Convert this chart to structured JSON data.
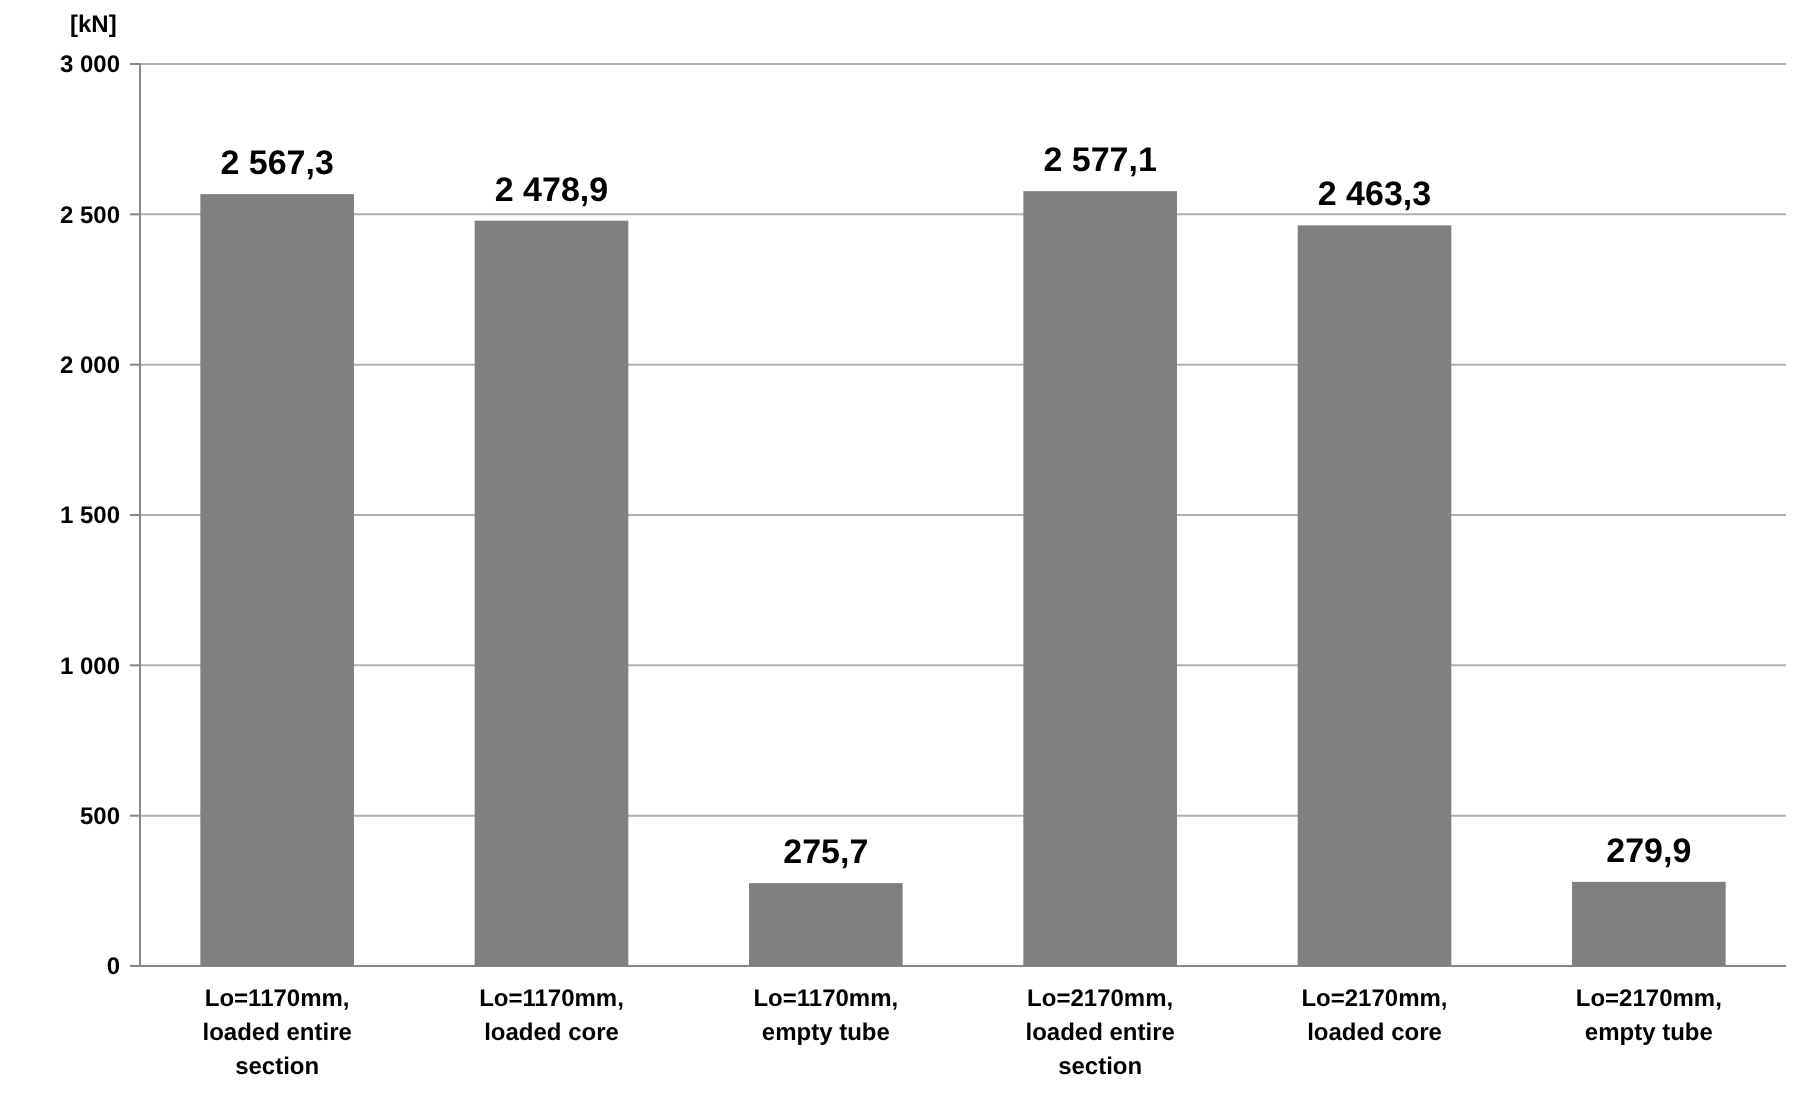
{
  "chart_data": {
    "type": "bar",
    "ylabel": "[kN]",
    "categories": [
      "Lo=1170mm, loaded entire section",
      "Lo=1170mm, loaded core",
      "Lo=1170mm, empty tube",
      "Lo=2170mm, loaded entire section",
      "Lo=2170mm, loaded core",
      "Lo=2170mm, empty tube"
    ],
    "values": [
      2567.3,
      2478.9,
      275.7,
      2577.1,
      2463.3,
      279.9
    ],
    "value_labels": [
      "2 567,3",
      "2 478,9",
      "275,7",
      "2 577,1",
      "2 463,3",
      "279,9"
    ],
    "color": "#808080",
    "ylim": [
      0,
      3000
    ],
    "yticks": [
      {
        "value": 0,
        "label": "0"
      },
      {
        "value": 500,
        "label": "500"
      },
      {
        "value": 1000,
        "label": "1 000"
      },
      {
        "value": 1500,
        "label": "1 500"
      },
      {
        "value": 2000,
        "label": "2 000"
      },
      {
        "value": 2500,
        "label": "2 500"
      },
      {
        "value": 3000,
        "label": "3 000"
      }
    ],
    "grid": "y"
  }
}
